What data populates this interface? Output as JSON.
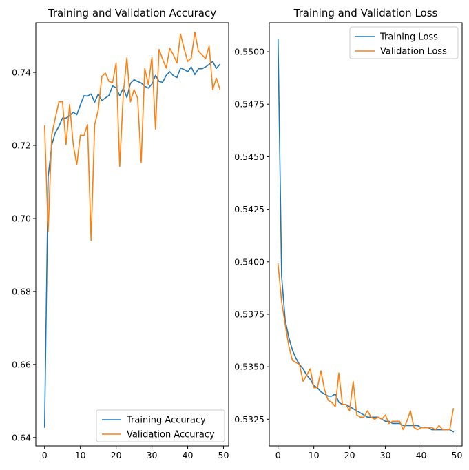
{
  "colors": {
    "training": "#1f77b4",
    "validation": "#ff7f0e"
  },
  "chart_data": [
    {
      "type": "line",
      "title": "Training and Validation Accuracy",
      "xlabel": "",
      "ylabel": "",
      "xlim": [
        -2.45,
        51.45
      ],
      "ylim": [
        0.6377,
        0.7536
      ],
      "xticks": [
        0,
        10,
        20,
        30,
        40,
        50
      ],
      "yticks": [
        0.64,
        0.66,
        0.68,
        0.7,
        0.72,
        0.74
      ],
      "ytick_labels": [
        "0.64",
        "0.66",
        "0.68",
        "0.70",
        "0.72",
        "0.74"
      ],
      "legend_position": "lower-right",
      "grid": false,
      "x": [
        0,
        1,
        2,
        3,
        4,
        5,
        6,
        7,
        8,
        9,
        10,
        11,
        12,
        13,
        14,
        15,
        16,
        17,
        18,
        19,
        20,
        21,
        22,
        23,
        24,
        25,
        26,
        27,
        28,
        29,
        30,
        31,
        32,
        33,
        34,
        35,
        36,
        37,
        38,
        39,
        40,
        41,
        42,
        43,
        44,
        45,
        46,
        47,
        48,
        49
      ],
      "series": [
        {
          "name": "Training Accuracy",
          "color_key": "training",
          "values": [
            0.6428,
            0.7114,
            0.7201,
            0.7235,
            0.7252,
            0.7275,
            0.7275,
            0.7281,
            0.7291,
            0.7284,
            0.7311,
            0.7336,
            0.7335,
            0.7341,
            0.7318,
            0.7341,
            0.7323,
            0.733,
            0.7337,
            0.7363,
            0.7358,
            0.7336,
            0.7357,
            0.7331,
            0.737,
            0.738,
            0.7375,
            0.7371,
            0.7362,
            0.7357,
            0.7368,
            0.7392,
            0.7375,
            0.7373,
            0.7392,
            0.7402,
            0.7391,
            0.7386,
            0.7412,
            0.7408,
            0.7402,
            0.7415,
            0.7394,
            0.741,
            0.741,
            0.7415,
            0.7422,
            0.743,
            0.7411,
            0.7422
          ]
        },
        {
          "name": "Validation Accuracy",
          "color_key": "validation",
          "values": [
            0.7253,
            0.6965,
            0.7228,
            0.7275,
            0.7319,
            0.732,
            0.7202,
            0.7312,
            0.7203,
            0.7147,
            0.7228,
            0.7227,
            0.7257,
            0.694,
            0.7257,
            0.7297,
            0.7389,
            0.7398,
            0.7375,
            0.7372,
            0.7426,
            0.7142,
            0.7342,
            0.744,
            0.7319,
            0.7353,
            0.733,
            0.7153,
            0.7411,
            0.7367,
            0.7442,
            0.7245,
            0.7463,
            0.7436,
            0.7412,
            0.7466,
            0.7448,
            0.7426,
            0.7505,
            0.7465,
            0.743,
            0.7439,
            0.751,
            0.7458,
            0.7448,
            0.7438,
            0.7472,
            0.7353,
            0.7384,
            0.7354
          ]
        }
      ]
    },
    {
      "type": "line",
      "title": "Training and Validation Loss",
      "xlabel": "",
      "ylabel": "",
      "xlim": [
        -2.45,
        51.45
      ],
      "ylim": [
        0.53123,
        0.55138
      ],
      "xticks": [
        0,
        10,
        20,
        30,
        40,
        50
      ],
      "yticks": [
        0.5325,
        0.535,
        0.5375,
        0.54,
        0.5425,
        0.545,
        0.5475,
        0.55
      ],
      "ytick_labels": [
        "0.5325",
        "0.5350",
        "0.5375",
        "0.5400",
        "0.5425",
        "0.5450",
        "0.5475",
        "0.5500"
      ],
      "legend_position": "upper-right",
      "grid": false,
      "x": [
        0,
        1,
        2,
        3,
        4,
        5,
        6,
        7,
        8,
        9,
        10,
        11,
        12,
        13,
        14,
        15,
        16,
        17,
        18,
        19,
        20,
        21,
        22,
        23,
        24,
        25,
        26,
        27,
        28,
        29,
        30,
        31,
        32,
        33,
        34,
        35,
        36,
        37,
        38,
        39,
        40,
        41,
        42,
        43,
        44,
        45,
        46,
        47,
        48,
        49
      ],
      "series": [
        {
          "name": "Training Loss",
          "color_key": "training",
          "values": [
            0.5506,
            0.5393,
            0.5372,
            0.5364,
            0.5358,
            0.5354,
            0.5351,
            0.5349,
            0.5346,
            0.5344,
            0.5341,
            0.534,
            0.5338,
            0.5337,
            0.5336,
            0.5336,
            0.5337,
            0.5333,
            0.5332,
            0.5332,
            0.5331,
            0.533,
            0.5329,
            0.5328,
            0.5327,
            0.5326,
            0.5326,
            0.5326,
            0.5326,
            0.5325,
            0.5324,
            0.5324,
            0.5323,
            0.5323,
            0.5323,
            0.5322,
            0.5322,
            0.5322,
            0.5322,
            0.5322,
            0.5321,
            0.5321,
            0.5321,
            0.532,
            0.532,
            0.532,
            0.532,
            0.532,
            0.532,
            0.5319
          ]
        },
        {
          "name": "Validation Loss",
          "color_key": "validation",
          "values": [
            0.5399,
            0.5381,
            0.537,
            0.536,
            0.5353,
            0.5352,
            0.5351,
            0.5343,
            0.5346,
            0.5349,
            0.534,
            0.534,
            0.5348,
            0.5339,
            0.5334,
            0.5333,
            0.5331,
            0.5347,
            0.5332,
            0.5332,
            0.5329,
            0.5343,
            0.5327,
            0.5326,
            0.5326,
            0.5329,
            0.5326,
            0.5325,
            0.5326,
            0.5325,
            0.5327,
            0.5323,
            0.5324,
            0.5324,
            0.5324,
            0.532,
            0.5324,
            0.5329,
            0.5321,
            0.532,
            0.5321,
            0.5321,
            0.5321,
            0.5321,
            0.532,
            0.5322,
            0.532,
            0.532,
            0.532,
            0.533
          ]
        }
      ]
    }
  ]
}
